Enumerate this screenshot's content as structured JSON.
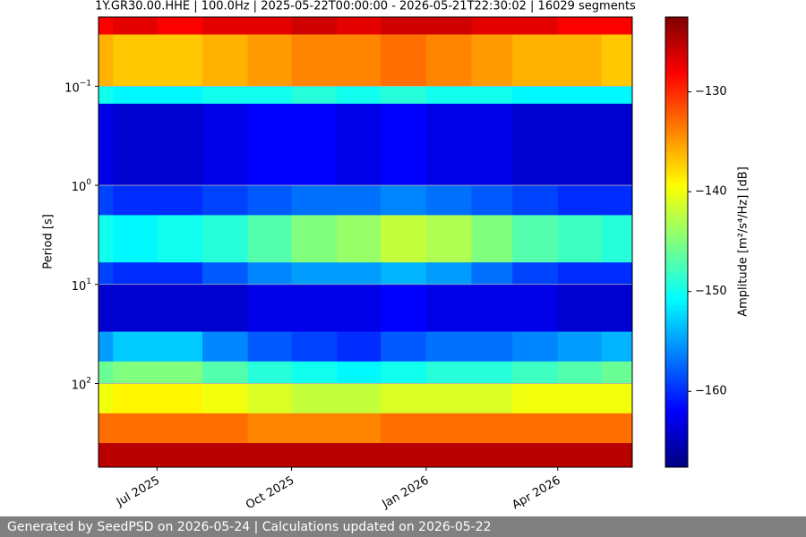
{
  "chart_data": {
    "type": "heatmap",
    "title": "1Y.GR30.00.HHE | 100.0Hz | 2025-05-22T00:00:00 - 2026-05-21T22:30:02 | 16029 segments",
    "y_label": "Period [s]",
    "colorbar_label": "Amplitude [m²/s⁴/Hz] [dB]",
    "footer": "Generated by SeedPSD on 2026-05-24 | Calculations updated on 2026-05-22",
    "x": [
      "2025-05",
      "2025-06",
      "2025-07",
      "2025-08",
      "2025-09",
      "2025-10",
      "2025-11",
      "2025-12",
      "2026-01",
      "2026-02",
      "2026-03",
      "2026-04",
      "2026-05"
    ],
    "xlim": [
      "2025-05-22T00:00:00",
      "2026-05-21T22:30:02"
    ],
    "xticks": [
      {
        "value": "2025-07",
        "label": "Jul 2025"
      },
      {
        "value": "2025-10",
        "label": "Oct 2025"
      },
      {
        "value": "2026-01",
        "label": "Jan 2026"
      },
      {
        "value": "2026-04",
        "label": "Apr 2026"
      }
    ],
    "y_edges": [
      0.02,
      0.03,
      0.1,
      0.15,
      1,
      2,
      6,
      10,
      30,
      60,
      100,
      200,
      400,
      700
    ],
    "ylim": [
      0.02,
      700
    ],
    "y_log": true,
    "y_inverted": true,
    "yticks": [
      {
        "value": 0.1,
        "label": "10",
        "exponent": "−1"
      },
      {
        "value": 1,
        "label": "10",
        "exponent": "0"
      },
      {
        "value": 10,
        "label": "10",
        "exponent": "1"
      },
      {
        "value": 100,
        "label": "10",
        "exponent": "2"
      }
    ],
    "grid": true,
    "colormap": "jet",
    "clim": [
      -167.6,
      -122.5
    ],
    "cticks": [
      {
        "value": -130,
        "label": "−130"
      },
      {
        "value": -140,
        "label": "−140"
      },
      {
        "value": -150,
        "label": "−150"
      },
      {
        "value": -160,
        "label": "−160"
      }
    ],
    "z": [
      [
        -128,
        -127,
        -128,
        -127,
        -127,
        -126,
        -127,
        -126,
        -126,
        -127,
        -127,
        -128,
        -128
      ],
      [
        -136,
        -137,
        -137,
        -136,
        -135,
        -134,
        -134,
        -133,
        -134,
        -135,
        -136,
        -136,
        -137
      ],
      [
        -150,
        -151,
        -151,
        -150,
        -150,
        -149,
        -150,
        -149,
        -150,
        -150,
        -151,
        -151,
        -151
      ],
      [
        -163,
        -164,
        -164,
        -163,
        -162,
        -162,
        -163,
        -162,
        -163,
        -163,
        -164,
        -164,
        -164
      ],
      [
        -159,
        -160,
        -160,
        -159,
        -158,
        -157,
        -157,
        -156,
        -157,
        -158,
        -159,
        -160,
        -160
      ],
      [
        -150,
        -151,
        -150,
        -149,
        -147,
        -145,
        -144,
        -142,
        -143,
        -145,
        -147,
        -148,
        -149
      ],
      [
        -159,
        -160,
        -160,
        -158,
        -156,
        -155,
        -155,
        -154,
        -155,
        -157,
        -159,
        -160,
        -160
      ],
      [
        -164,
        -164,
        -164,
        -164,
        -163,
        -163,
        -163,
        -162,
        -163,
        -163,
        -163,
        -164,
        -164
      ],
      [
        -155,
        -153,
        -153,
        -156,
        -158,
        -159,
        -160,
        -158,
        -157,
        -157,
        -156,
        -155,
        -154
      ],
      [
        -146,
        -145,
        -145,
        -147,
        -149,
        -150,
        -151,
        -150,
        -149,
        -149,
        -148,
        -147,
        -146
      ],
      [
        -140,
        -139,
        -139,
        -140,
        -141,
        -142,
        -142,
        -141,
        -141,
        -141,
        -140,
        -140,
        -140
      ],
      [
        -133,
        -133,
        -133,
        -133,
        -134,
        -134,
        -134,
        -133,
        -133,
        -133,
        -133,
        -133,
        -133
      ],
      [
        -125,
        -125,
        -125,
        -125,
        -125,
        -125,
        -125,
        -125,
        -125,
        -125,
        -125,
        -125,
        -125
      ]
    ]
  }
}
